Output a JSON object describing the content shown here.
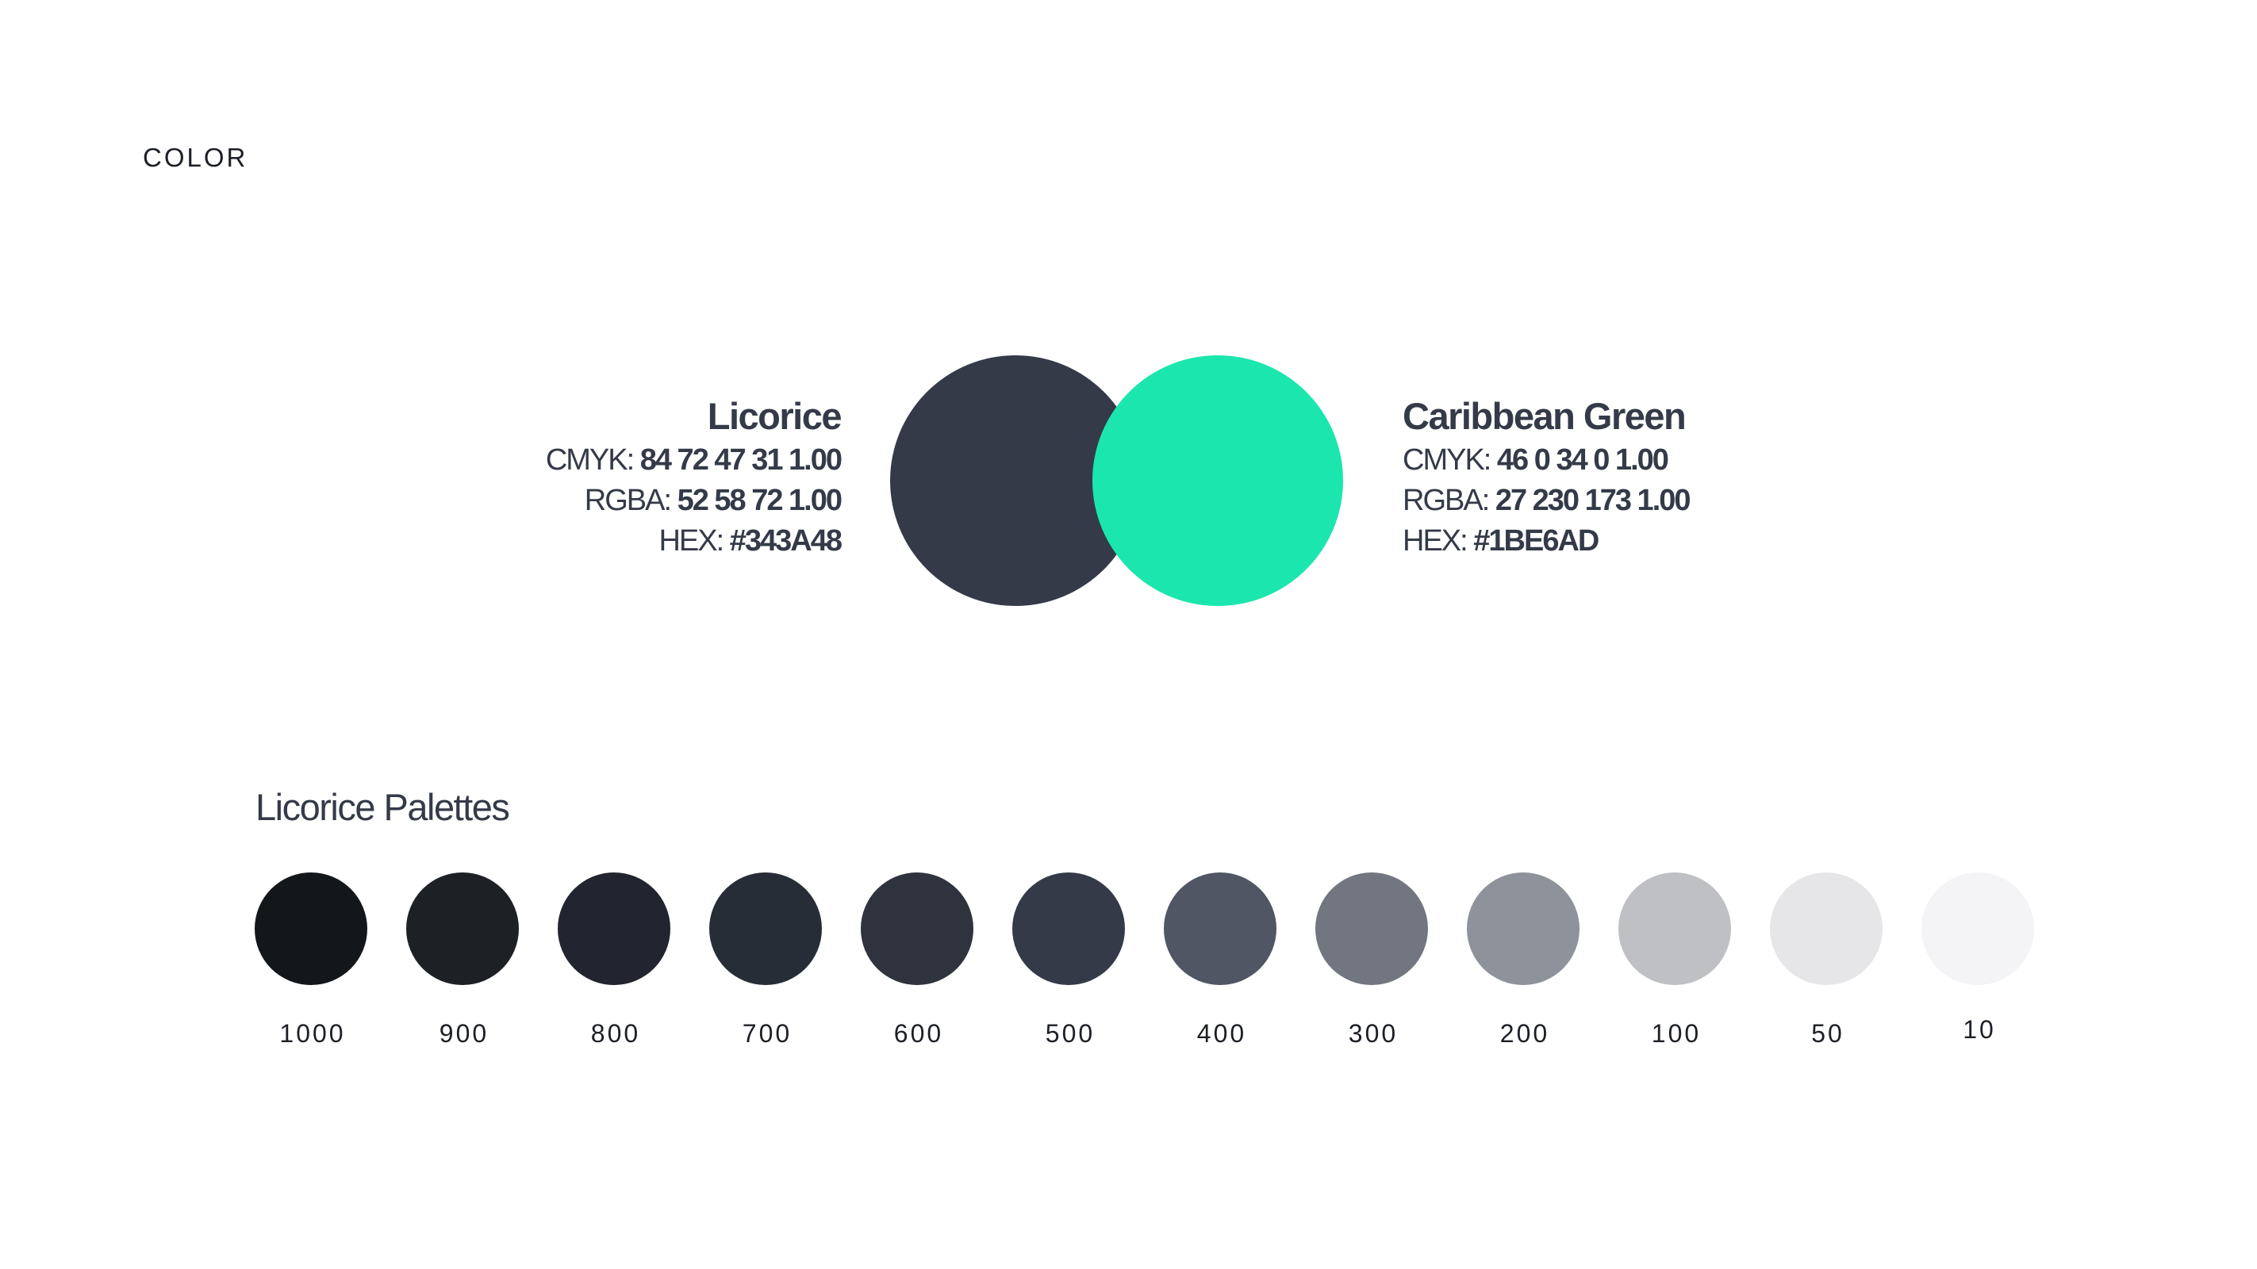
{
  "page": {
    "label": "COLOR"
  },
  "primary_colors": [
    {
      "name": "Licorice",
      "cmyk_label": "CMYK:",
      "cmyk_value": "84 72 47 31 1.00",
      "rgba_label": "RGBA:",
      "rgba_value": "52 58 72 1.00",
      "hex_label": "HEX:",
      "hex_value": "#343A48",
      "swatch_color": "#343A48"
    },
    {
      "name": "Caribbean Green",
      "cmyk_label": "CMYK:",
      "cmyk_value": "46 0 34 0 1.00",
      "rgba_label": "RGBA:",
      "rgba_value": "27 230 173 1.00",
      "hex_label": "HEX:",
      "hex_value": "#1BE6AD",
      "swatch_color": "#1BE6AD"
    }
  ],
  "palette": {
    "title": "Licorice Palettes",
    "steps": [
      {
        "label": "1000",
        "color": "#14171a"
      },
      {
        "label": "900",
        "color": "#1d2024"
      },
      {
        "label": "800",
        "color": "#22252f"
      },
      {
        "label": "700",
        "color": "#272d37"
      },
      {
        "label": "600",
        "color": "#2f333e"
      },
      {
        "label": "500",
        "color": "#343A48"
      },
      {
        "label": "400",
        "color": "#505663"
      },
      {
        "label": "300",
        "color": "#717680"
      },
      {
        "label": "200",
        "color": "#8e929b"
      },
      {
        "label": "100",
        "color": "#bfc0c4"
      },
      {
        "label": "50",
        "color": "#e6e6e8"
      },
      {
        "label": "10",
        "color": "#f4f4f7"
      }
    ]
  }
}
